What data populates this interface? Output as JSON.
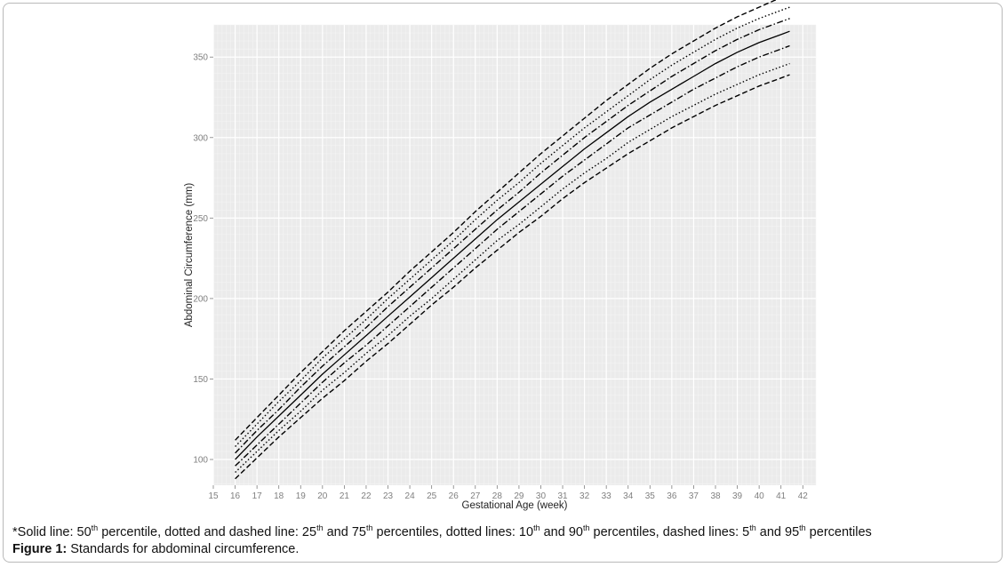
{
  "caption": {
    "note_segments": [
      "*Solid line: 50",
      "th",
      " percentile, dotted and dashed line: 25",
      "th",
      " and 75",
      "th",
      " percentiles, dotted lines: 10",
      "th",
      " and 90",
      "th",
      " percentiles, dashed lines: 5",
      "th",
      " and 95",
      "th",
      " percentiles"
    ],
    "figure_label": "Figure 1:",
    "figure_title": " Standards for abdominal circumference."
  },
  "chart_data": {
    "type": "line",
    "title": "",
    "xlabel": "Gestational Age (week)",
    "ylabel": "Abdominal Circumference (mm)",
    "xlim": [
      15,
      42.6
    ],
    "ylim": [
      84,
      370
    ],
    "xticks": [
      15,
      16,
      17,
      18,
      19,
      20,
      21,
      22,
      23,
      24,
      25,
      26,
      27,
      28,
      29,
      30,
      31,
      32,
      33,
      34,
      35,
      36,
      37,
      38,
      39,
      40,
      41,
      42
    ],
    "yticks": [
      100,
      150,
      200,
      250,
      300,
      350
    ],
    "grid": true,
    "background": "#ebebeb",
    "x": [
      16,
      17,
      18,
      19,
      20,
      21,
      22,
      23,
      24,
      25,
      26,
      27,
      28,
      29,
      30,
      31,
      32,
      33,
      34,
      35,
      36,
      37,
      38,
      39,
      40,
      41,
      41.4
    ],
    "series": [
      {
        "style": "dashed",
        "values": [
          88,
          101,
          114,
          126,
          138,
          149,
          161,
          172,
          184,
          196,
          207,
          219,
          230,
          241,
          251,
          262,
          272,
          281,
          290,
          298,
          306,
          313,
          320,
          326,
          332,
          337,
          339
        ]
      },
      {
        "style": "dotted",
        "values": [
          92,
          105,
          118,
          130,
          143,
          154,
          166,
          177,
          189,
          200,
          212,
          224,
          236,
          246,
          257,
          268,
          278,
          287,
          297,
          305,
          313,
          320,
          327,
          333,
          339,
          344,
          346
        ]
      },
      {
        "style": "dotdash",
        "values": [
          96,
          109,
          122,
          135,
          148,
          160,
          171,
          183,
          195,
          207,
          219,
          231,
          243,
          254,
          265,
          276,
          286,
          296,
          306,
          314,
          322,
          330,
          337,
          344,
          350,
          355,
          357
        ]
      },
      {
        "style": "solid",
        "values": [
          100,
          114,
          127,
          140,
          153,
          165,
          177,
          189,
          201,
          213,
          225,
          237,
          249,
          260,
          271,
          282,
          293,
          303,
          313,
          322,
          330,
          338,
          346,
          353,
          359,
          364,
          366
        ]
      },
      {
        "style": "dotdash",
        "values": [
          104,
          118,
          131,
          145,
          158,
          170,
          182,
          195,
          207,
          219,
          231,
          243,
          255,
          266,
          278,
          289,
          300,
          310,
          320,
          329,
          338,
          346,
          354,
          361,
          367,
          372,
          374
        ]
      },
      {
        "style": "dotted",
        "values": [
          108,
          122,
          136,
          149,
          163,
          175,
          187,
          200,
          212,
          224,
          236,
          249,
          261,
          272,
          284,
          295,
          306,
          316,
          326,
          336,
          345,
          353,
          361,
          368,
          374,
          379,
          381
        ]
      },
      {
        "style": "dashed",
        "values": [
          112,
          126,
          140,
          154,
          167,
          180,
          192,
          204,
          217,
          229,
          241,
          254,
          266,
          278,
          290,
          301,
          312,
          323,
          333,
          343,
          352,
          360,
          368,
          375,
          381,
          387,
          389
        ]
      }
    ]
  }
}
